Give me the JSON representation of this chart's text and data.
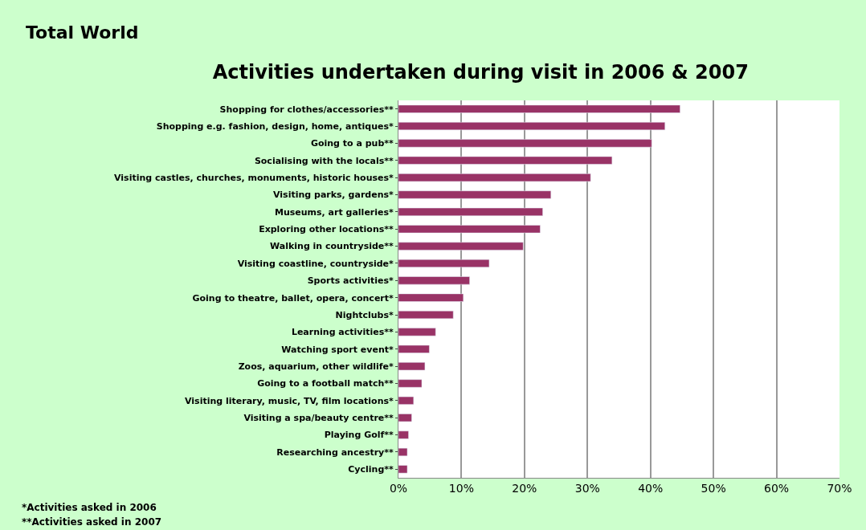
{
  "chart_data": {
    "type": "bar",
    "orientation": "horizontal",
    "title": "Activities undertaken during visit in 2006 & 2007",
    "subtitle": "Total World",
    "categories": [
      "Shopping for clothes/accessories**",
      "Shopping e.g. fashion, design, home, antiques*",
      "Going to a pub**",
      "Socialising with the locals**",
      "Visiting castles, churches, monuments, historic houses*",
      "Visiting parks, gardens*",
      "Museums, art galleries*",
      "Exploring other locations**",
      "Walking in countryside**",
      "Visiting coastline, countryside*",
      "Sports activities*",
      "Going to theatre, ballet, opera, concert*",
      "Nightclubs*",
      "Learning activities**",
      "Watching sport event*",
      "Zoos, aquarium, other wildlife*",
      "Going to a football match**",
      "Visiting literary, music, TV, film locations*",
      "Visiting a spa/beauty centre**",
      "Playing Golf**",
      "Researching ancestry**",
      "Cycling**"
    ],
    "values": [
      44.7,
      42.3,
      40.2,
      33.9,
      30.5,
      24.2,
      22.9,
      22.5,
      19.8,
      14.4,
      11.3,
      10.3,
      8.7,
      5.9,
      4.9,
      4.2,
      3.7,
      2.4,
      2.1,
      1.6,
      1.4,
      1.4
    ],
    "color": "#993366",
    "xlim": [
      0,
      70
    ],
    "xticks": [
      {
        "value": 0,
        "label": "0%"
      },
      {
        "value": 10,
        "label": "10%"
      },
      {
        "value": 20,
        "label": "20%"
      },
      {
        "value": 30,
        "label": "30%"
      },
      {
        "value": 40,
        "label": "40%"
      },
      {
        "value": 50,
        "label": "50%"
      },
      {
        "value": 60,
        "label": "60%"
      },
      {
        "value": 70,
        "label": "70%"
      }
    ],
    "grid": "x",
    "annotations": [
      "*Activities asked in 2006",
      "**Activities asked in 2007"
    ]
  }
}
